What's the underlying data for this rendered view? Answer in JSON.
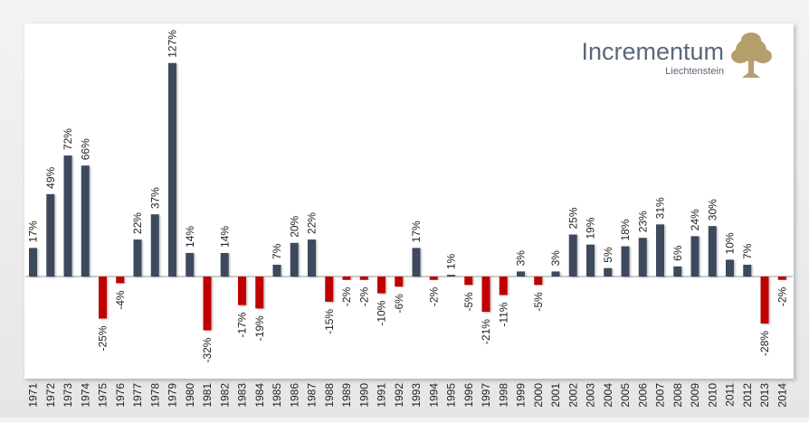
{
  "brand": {
    "name": "Incrementum",
    "tagline": "Liechtenstein",
    "logo_icon": "tree-icon",
    "text_color": "#5b6778",
    "logo_color": "#b59e6b"
  },
  "chart_data": {
    "type": "bar",
    "categories": [
      "1971",
      "1972",
      "1973",
      "1974",
      "1975",
      "1976",
      "1977",
      "1978",
      "1979",
      "1980",
      "1981",
      "1982",
      "1983",
      "1984",
      "1985",
      "1986",
      "1987",
      "1988",
      "1989",
      "1990",
      "1991",
      "1992",
      "1993",
      "1994",
      "1995",
      "1996",
      "1997",
      "1998",
      "1999",
      "2000",
      "2001",
      "2002",
      "2003",
      "2004",
      "2005",
      "2006",
      "2007",
      "2008",
      "2009",
      "2010",
      "2011",
      "2012",
      "2013",
      "2014"
    ],
    "values": [
      17,
      49,
      72,
      66,
      -25,
      -4,
      22,
      37,
      127,
      14,
      -32,
      14,
      -17,
      -19,
      7,
      20,
      22,
      -15,
      -2,
      -2,
      -10,
      -6,
      17,
      -2,
      1,
      -5,
      -21,
      -11,
      3,
      -5,
      3,
      25,
      19,
      5,
      18,
      23,
      31,
      6,
      24,
      30,
      10,
      7,
      -28,
      -2
    ],
    "labels": [
      "17%",
      "49%",
      "72%",
      "66%",
      "-25%",
      "-4%",
      "22%",
      "37%",
      "127%",
      "14%",
      "-32%",
      "14%",
      "-17%",
      "-19%",
      "7%",
      "20%",
      "22%",
      "-15%",
      "-2%",
      "-2%",
      "-10%",
      "-6%",
      "17%",
      "-2%",
      "1%",
      "-5%",
      "-21%",
      "-11%",
      "3%",
      "-5%",
      "3%",
      "25%",
      "19%",
      "5%",
      "18%",
      "23%",
      "31%",
      "6%",
      "24%",
      "30%",
      "10%",
      "7%",
      "-28%",
      "-2%"
    ],
    "ylim": [
      -60,
      145
    ],
    "grid": false,
    "colors": {
      "positive": "#3d4a5c",
      "negative": "#c00000",
      "axis": "#999999"
    }
  }
}
